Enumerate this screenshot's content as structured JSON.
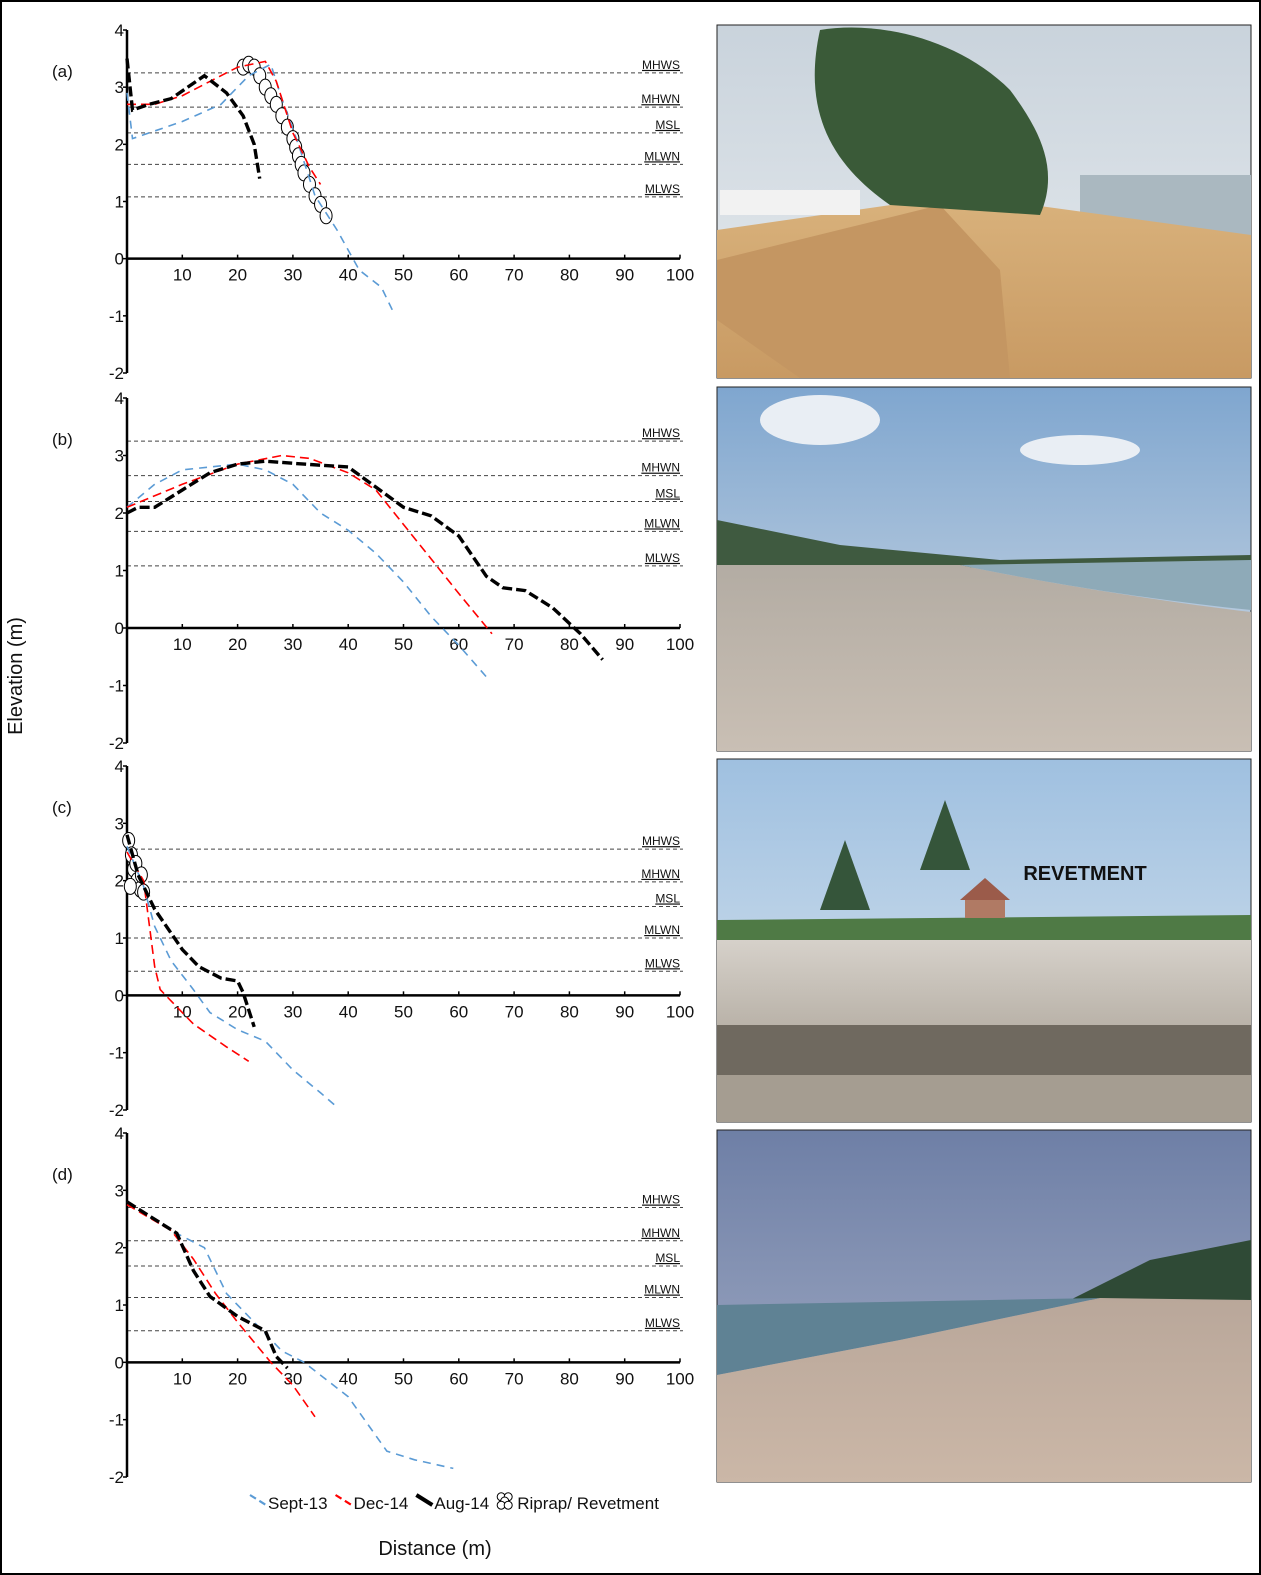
{
  "legend": {
    "entries": [
      {
        "name": "Sept-13",
        "color": "#5b9bd5"
      },
      {
        "name": "Dec-14",
        "color": "#ff0000"
      },
      {
        "name": "Aug-14",
        "color": "#000000"
      }
    ],
    "riprap_name": "Riprap/ Revetment"
  },
  "x_label": "Distance (m)",
  "y_label": "Elevation (m)",
  "photo_label": "REVETMENT",
  "chart_data": [
    {
      "type": "line",
      "label": "(a)",
      "xlim": [
        0,
        100
      ],
      "ylim": [
        -2,
        4
      ],
      "xticks": [
        10,
        20,
        30,
        40,
        50,
        60,
        70,
        80,
        90,
        100
      ],
      "yticks": [
        -2,
        -1,
        0,
        1,
        2,
        3,
        4
      ],
      "reference_lines": [
        {
          "label": "MHWS",
          "value": 3.25
        },
        {
          "label": "MHWN",
          "value": 2.65
        },
        {
          "label": "MSL",
          "value": 2.2
        },
        {
          "label": "MLWN",
          "value": 1.65
        },
        {
          "label": "MLWS",
          "value": 1.08
        }
      ],
      "series": [
        {
          "x": [
            0,
            1,
            10,
            17,
            22,
            26,
            28,
            31,
            34,
            38,
            42,
            46,
            48
          ],
          "values": [
            2.9,
            2.1,
            2.4,
            2.7,
            3.2,
            3.4,
            2.8,
            2.0,
            1.1,
            0.5,
            -0.2,
            -0.5,
            -0.9
          ]
        },
        {
          "x": [
            0,
            5,
            10,
            15,
            20,
            25,
            27,
            30,
            33,
            35
          ],
          "values": [
            2.7,
            2.7,
            2.85,
            3.1,
            3.35,
            3.45,
            3.1,
            2.2,
            1.6,
            1.3
          ]
        },
        {
          "x": [
            0,
            1,
            4,
            8,
            14,
            18,
            21,
            23,
            24
          ],
          "values": [
            3.5,
            2.6,
            2.7,
            2.8,
            3.2,
            2.9,
            2.5,
            2.0,
            1.4
          ]
        }
      ],
      "riprap": {
        "x": [
          21,
          22,
          23,
          24,
          25,
          26,
          27,
          28,
          29,
          30,
          30.5,
          31,
          31.5,
          32,
          33,
          34,
          35,
          36
        ],
        "values": [
          3.35,
          3.4,
          3.35,
          3.2,
          3.0,
          2.85,
          2.7,
          2.5,
          2.3,
          2.1,
          1.95,
          1.8,
          1.65,
          1.5,
          1.3,
          1.1,
          0.95,
          0.75
        ]
      }
    },
    {
      "type": "line",
      "label": "(b)",
      "xlim": [
        0,
        100
      ],
      "ylim": [
        -2,
        4
      ],
      "xticks": [
        10,
        20,
        30,
        40,
        50,
        60,
        70,
        80,
        90,
        100
      ],
      "yticks": [
        -2,
        -1,
        0,
        1,
        2,
        3,
        4
      ],
      "reference_lines": [
        {
          "label": "MHWS",
          "value": 3.25
        },
        {
          "label": "MHWN",
          "value": 2.65
        },
        {
          "label": "MSL",
          "value": 2.2
        },
        {
          "label": "MLWN",
          "value": 1.68
        },
        {
          "label": "MLWS",
          "value": 1.08
        }
      ],
      "series": [
        {
          "x": [
            0,
            5,
            10,
            20,
            25,
            30,
            35,
            40,
            45,
            50,
            55,
            60,
            65
          ],
          "values": [
            2.1,
            2.5,
            2.75,
            2.85,
            2.75,
            2.5,
            2.0,
            1.7,
            1.3,
            0.8,
            0.2,
            -0.3,
            -0.85
          ]
        },
        {
          "x": [
            0,
            10,
            20,
            28,
            33,
            40,
            45,
            50,
            55,
            60,
            66
          ],
          "values": [
            2.1,
            2.5,
            2.85,
            3.0,
            2.95,
            2.7,
            2.4,
            1.8,
            1.2,
            0.6,
            -0.1
          ]
        },
        {
          "x": [
            0,
            2,
            5,
            10,
            15,
            20,
            25,
            32,
            40,
            45,
            50,
            55,
            60,
            65,
            68,
            72,
            77,
            82,
            86
          ],
          "values": [
            2.0,
            2.1,
            2.1,
            2.4,
            2.7,
            2.85,
            2.9,
            2.85,
            2.8,
            2.45,
            2.1,
            1.95,
            1.6,
            0.9,
            0.7,
            0.65,
            0.35,
            -0.1,
            -0.55
          ]
        }
      ]
    },
    {
      "type": "line",
      "label": "(c)",
      "xlim": [
        0,
        100
      ],
      "ylim": [
        -2,
        4
      ],
      "xticks": [
        10,
        20,
        30,
        40,
        50,
        60,
        70,
        80,
        90,
        100
      ],
      "yticks": [
        -2,
        -1,
        0,
        1,
        2,
        3,
        4
      ],
      "reference_lines": [
        {
          "label": "MHWS",
          "value": 2.55
        },
        {
          "label": "MHWN",
          "value": 1.98
        },
        {
          "label": "MSL",
          "value": 1.55
        },
        {
          "label": "MLWN",
          "value": 1.0
        },
        {
          "label": "MLWS",
          "value": 0.42
        }
      ],
      "series": [
        {
          "x": [
            0,
            3,
            5,
            8,
            12,
            15,
            20,
            25,
            30,
            35,
            38
          ],
          "values": [
            2.6,
            1.9,
            1.2,
            0.6,
            0.1,
            -0.3,
            -0.6,
            -0.8,
            -1.3,
            -1.7,
            -1.95
          ]
        },
        {
          "x": [
            0,
            3,
            5,
            6,
            8,
            12,
            18,
            22
          ],
          "values": [
            2.5,
            2.0,
            0.5,
            0.1,
            -0.1,
            -0.5,
            -0.9,
            -1.15
          ]
        },
        {
          "x": [
            0,
            2,
            5,
            10,
            13,
            17,
            20,
            21,
            23
          ],
          "values": [
            2.8,
            2.1,
            1.5,
            0.8,
            0.5,
            0.3,
            0.25,
            0.05,
            -0.55
          ]
        }
      ],
      "riprap": {
        "x": [
          0.3,
          0.8,
          1.2,
          1.8,
          2.4,
          3.0,
          0.6,
          1.6,
          2.6
        ],
        "values": [
          2.7,
          2.45,
          2.2,
          2.0,
          1.85,
          1.8,
          1.9,
          2.3,
          2.1
        ]
      }
    },
    {
      "type": "line",
      "label": "(d)",
      "xlim": [
        0,
        100
      ],
      "ylim": [
        -2,
        4
      ],
      "xticks": [
        10,
        20,
        30,
        40,
        50,
        60,
        70,
        80,
        90,
        100
      ],
      "yticks": [
        -2,
        -1,
        0,
        1,
        2,
        3,
        4
      ],
      "reference_lines": [
        {
          "label": "MHWS",
          "value": 2.7
        },
        {
          "label": "MHWN",
          "value": 2.12
        },
        {
          "label": "MSL",
          "value": 1.68
        },
        {
          "label": "MLWN",
          "value": 1.13
        },
        {
          "label": "MLWS",
          "value": 0.55
        }
      ],
      "series": [
        {
          "x": [
            0,
            8,
            14,
            18,
            22,
            28,
            32,
            40,
            47,
            52,
            59
          ],
          "values": [
            2.8,
            2.3,
            2.0,
            1.2,
            0.8,
            0.2,
            0.0,
            -0.6,
            -1.55,
            -1.7,
            -1.85
          ]
        },
        {
          "x": [
            0,
            8,
            12,
            16,
            20,
            26,
            30,
            34
          ],
          "values": [
            2.75,
            2.3,
            1.8,
            1.2,
            0.7,
            0.0,
            -0.4,
            -0.95
          ]
        },
        {
          "x": [
            0,
            9,
            12,
            15,
            20,
            25,
            27,
            29
          ],
          "values": [
            2.8,
            2.25,
            1.6,
            1.15,
            0.8,
            0.55,
            0.1,
            -0.1
          ]
        }
      ]
    }
  ]
}
